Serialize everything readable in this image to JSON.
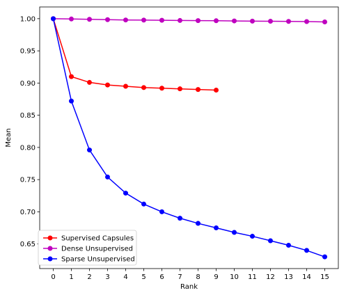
{
  "chart_data": {
    "type": "line",
    "xlabel": "Rank",
    "ylabel": "Mean",
    "xlim": [
      -0.75,
      15.75
    ],
    "ylim": [
      0.6118,
      1.0182
    ],
    "x_ticks": [
      "0",
      "1",
      "2",
      "3",
      "4",
      "5",
      "6",
      "7",
      "8",
      "9",
      "10",
      "11",
      "12",
      "13",
      "14",
      "15"
    ],
    "y_ticks": [
      "0.65",
      "0.70",
      "0.75",
      "0.80",
      "0.85",
      "0.90",
      "0.95",
      "1.00"
    ],
    "grid": false,
    "legend_position": "lower-left",
    "series": [
      {
        "name": "Supervised Capsules",
        "color": "#ff0000",
        "x": [
          0,
          1,
          2,
          3,
          4,
          5,
          6,
          7,
          8,
          9
        ],
        "y": [
          1.0,
          0.91,
          0.901,
          0.897,
          0.895,
          0.893,
          0.892,
          0.891,
          0.89,
          0.889
        ]
      },
      {
        "name": "Dense Unsupervised",
        "color": "#bf00bf",
        "x": [
          0,
          1,
          2,
          3,
          4,
          5,
          6,
          7,
          8,
          9,
          10,
          11,
          12,
          13,
          14,
          15
        ],
        "y": [
          1.0,
          0.9995,
          0.999,
          0.9985,
          0.998,
          0.9978,
          0.9975,
          0.9972,
          0.997,
          0.9968,
          0.9965,
          0.9962,
          0.996,
          0.9958,
          0.9955,
          0.995
        ]
      },
      {
        "name": "Sparse Unsupervised",
        "color": "#0000ff",
        "x": [
          0,
          1,
          2,
          3,
          4,
          5,
          6,
          7,
          8,
          9,
          10,
          11,
          12,
          13,
          14,
          15
        ],
        "y": [
          1.0,
          0.872,
          0.796,
          0.754,
          0.729,
          0.712,
          0.7,
          0.69,
          0.682,
          0.675,
          0.668,
          0.662,
          0.655,
          0.648,
          0.64,
          0.63
        ]
      }
    ]
  }
}
